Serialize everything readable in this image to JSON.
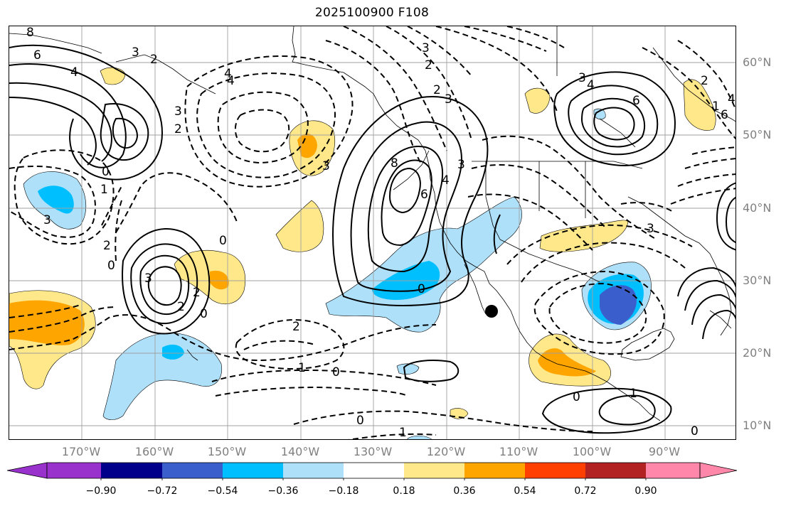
{
  "title": "2025100900 F108",
  "lat_labels": [
    "60°N",
    "50°N",
    "40°N",
    "30°N",
    "20°N",
    "10°N"
  ],
  "lon_labels": [
    "170°W",
    "160°W",
    "150°W",
    "140°W",
    "130°W",
    "120°W",
    "110°W",
    "100°W",
    "90°W"
  ],
  "colorbar": {
    "ticks": [
      "−0.90",
      "−0.72",
      "−0.54",
      "−0.36",
      "−0.18",
      "0.18",
      "0.36",
      "0.54",
      "0.72",
      "0.90"
    ],
    "colors": [
      "#9932cc",
      "#00008b",
      "#3a5fcd",
      "#00bfff",
      "#aee0fa",
      "#ffffff",
      "#ffe88a",
      "#ffa500",
      "#ff4000",
      "#b22222",
      "#ff88aa"
    ]
  },
  "contour_labels": [
    "8",
    "6",
    "4",
    "3",
    "2",
    "0",
    "1",
    "3",
    "0",
    "2",
    "3",
    "2",
    "2",
    "0",
    "2",
    "1",
    "0",
    "0",
    "1",
    "1",
    "0",
    "0",
    "8",
    "6",
    "4",
    "3",
    "6",
    "4",
    "3",
    "3",
    "2",
    "3",
    "4",
    "3",
    "0",
    "4",
    "2",
    "1",
    "0",
    "6",
    "4",
    "3",
    "2",
    "2",
    "3"
  ],
  "colors": {
    "frame": "#000000",
    "grid": "#a0a0a0",
    "coast": "#000000",
    "marker": "#000000"
  }
}
